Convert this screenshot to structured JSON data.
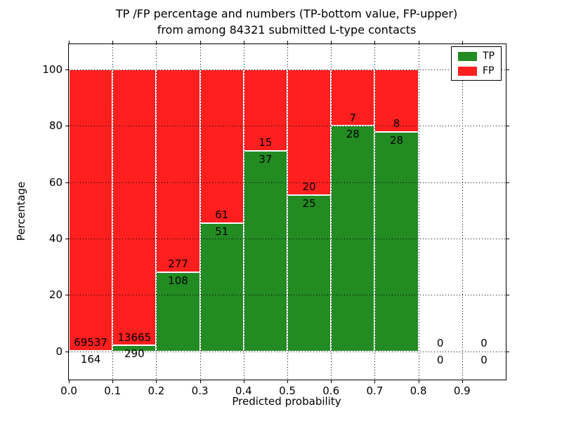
{
  "chart_data": {
    "type": "bar",
    "stacked": true,
    "normalized_to_percent": true,
    "title": "TP /FP percentage and numbers (TP-bottom value, FP-upper)",
    "subtitle": "from among 84321 submitted L-type contacts",
    "xlabel": "Predicted probability",
    "ylabel": "Percentage",
    "total_contacts": 84321,
    "bin_width": 0.1,
    "bin_starts": [
      0.0,
      0.1,
      0.2,
      0.3,
      0.4,
      0.5,
      0.6,
      0.7,
      0.8,
      0.9
    ],
    "series": [
      {
        "name": "TP",
        "color": "#228b22",
        "counts": [
          164,
          290,
          108,
          51,
          37,
          25,
          28,
          28,
          0,
          0
        ]
      },
      {
        "name": "FP",
        "color": "#ff1f1f",
        "counts": [
          69537,
          13665,
          277,
          61,
          15,
          20,
          7,
          8,
          0,
          0
        ]
      }
    ],
    "x_tick_labels": [
      "0.0",
      "0.1",
      "0.2",
      "0.3",
      "0.4",
      "0.5",
      "0.6",
      "0.7",
      "0.8",
      "0.9"
    ],
    "y_tick_values": [
      0,
      20,
      40,
      60,
      80,
      100
    ],
    "xlim": [
      0.0,
      1.0
    ],
    "ylim": [
      -10,
      109
    ],
    "grid": "dotted",
    "legend_position": "upper right",
    "annotation_rule": "FP count above segment boundary, TP count below segment boundary"
  }
}
